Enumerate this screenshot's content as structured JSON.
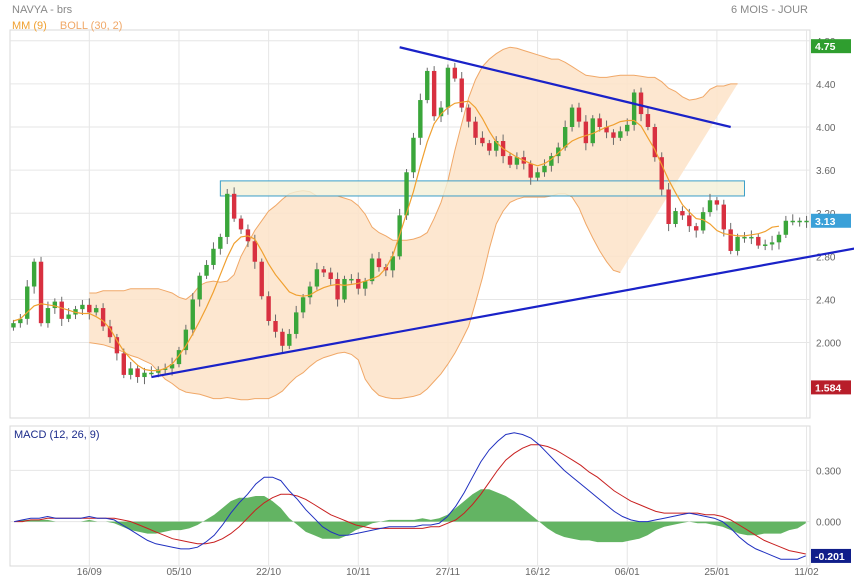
{
  "header": {
    "instrument": "NAVYA - brs",
    "period": "6 MOIS - JOUR"
  },
  "indicators": {
    "mm_label": "MM (9)",
    "boll_label": "BOLL (30, 2)",
    "macd_label": "MACD (12, 26, 9)"
  },
  "colors": {
    "up": "#3aa63a",
    "down": "#d83040",
    "mm": "#f0a030",
    "boll_fill": "#fde3c8",
    "boll_line": "#f0a868",
    "trend": "#1a22c8",
    "zone_fill": "#f2f0d8",
    "zone_stroke": "#3a9ec8",
    "macd_line": "#2030c0",
    "signal_line": "#c82020",
    "hist": "#63b463",
    "grid": "#e6e6e6",
    "badge_last": "#2f9e2f",
    "badge_low": "#b81e2a",
    "badge_price": "#3aa0d8",
    "badge_macd": "#101e8a"
  },
  "chart_data": [
    {
      "type": "candlestick",
      "y_ticks": [
        "4.80",
        "4.40",
        "4.00",
        "3.60",
        "3.20",
        "2.80",
        "2.40",
        "2.000"
      ],
      "ylim": [
        1.3,
        4.9
      ],
      "x_tick_labels": [
        "16/09",
        "05/10",
        "22/10",
        "10/11",
        "27/11",
        "16/12",
        "06/01",
        "25/01",
        "11/02"
      ],
      "x_tick_index": [
        11,
        24,
        37,
        50,
        63,
        76,
        89,
        102,
        115
      ],
      "n_bars": 116,
      "markers": {
        "high": "4.75",
        "price": "3.13",
        "low": "1.584"
      },
      "close": [
        2.18,
        2.22,
        2.52,
        2.75,
        2.18,
        2.32,
        2.38,
        2.22,
        2.26,
        2.31,
        2.35,
        2.28,
        2.32,
        2.15,
        2.05,
        1.9,
        1.7,
        1.76,
        1.68,
        1.72,
        1.72,
        1.75,
        1.76,
        1.8,
        1.93,
        2.12,
        2.4,
        2.62,
        2.72,
        2.87,
        2.98,
        3.38,
        3.15,
        3.05,
        2.94,
        2.75,
        2.43,
        2.2,
        2.1,
        1.97,
        2.08,
        2.28,
        2.42,
        2.52,
        2.68,
        2.65,
        2.59,
        2.4,
        2.59,
        2.59,
        2.5,
        2.57,
        2.78,
        2.7,
        2.67,
        2.8,
        3.18,
        3.58,
        3.9,
        4.25,
        4.52,
        4.1,
        4.18,
        4.55,
        4.45,
        4.18,
        4.05,
        3.9,
        3.85,
        3.78,
        3.87,
        3.73,
        3.65,
        3.72,
        3.66,
        3.53,
        3.58,
        3.64,
        3.73,
        3.81,
        4.0,
        4.18,
        4.05,
        3.85,
        4.08,
        4.0,
        3.95,
        3.9,
        3.96,
        4.02,
        4.32,
        4.12,
        4.0,
        3.72,
        3.42,
        3.1,
        3.22,
        3.18,
        3.08,
        3.04,
        3.21,
        3.32,
        3.28,
        3.05,
        2.85,
        2.98,
        2.98,
        2.98,
        2.9,
        2.91,
        2.93,
        3.0,
        3.13,
        3.13,
        3.13,
        3.13
      ],
      "mm_9": [
        2.2,
        2.22,
        2.28,
        2.34,
        2.36,
        2.35,
        2.34,
        2.32,
        2.3,
        2.28,
        2.27,
        2.27,
        2.24,
        2.2,
        2.13,
        2.02,
        1.92,
        1.85,
        1.79,
        1.75,
        1.74,
        1.74,
        1.76,
        1.8,
        1.88,
        1.97,
        2.08,
        2.2,
        2.33,
        2.47,
        2.63,
        2.79,
        2.92,
        2.98,
        2.99,
        2.96,
        2.85,
        2.73,
        2.63,
        2.55,
        2.47,
        2.44,
        2.43,
        2.44,
        2.48,
        2.51,
        2.53,
        2.54,
        2.53,
        2.54,
        2.55,
        2.57,
        2.59,
        2.62,
        2.69,
        2.81,
        3.0,
        3.2,
        3.4,
        3.64,
        3.86,
        4.03,
        4.12,
        4.18,
        4.22,
        4.23,
        4.24,
        4.18,
        4.08,
        3.96,
        3.86,
        3.8,
        3.76,
        3.72,
        3.69,
        3.66,
        3.64,
        3.66,
        3.7,
        3.76,
        3.82,
        3.87,
        3.9,
        3.92,
        3.94,
        3.97,
        4.0,
        4.02,
        4.05,
        4.06,
        4.06,
        4.01,
        3.9,
        3.79,
        3.65,
        3.51,
        3.39,
        3.28,
        3.21,
        3.15,
        3.14,
        3.1,
        3.04,
        3.01,
        3.0,
        2.99,
        2.99,
        3.0,
        3.01,
        3.03,
        3.07,
        3.08
      ],
      "boll_upper": [
        2.46,
        2.46,
        2.48,
        2.48,
        2.48,
        2.48,
        2.5,
        2.5,
        2.5,
        2.5,
        2.5,
        2.48,
        2.46,
        2.42,
        2.4,
        2.45,
        2.53,
        2.56,
        2.57,
        2.56,
        2.57,
        2.63,
        2.8,
        2.92,
        3.04,
        3.13,
        3.22,
        3.27,
        3.33,
        3.38,
        3.4,
        3.41,
        3.4,
        3.36,
        3.36,
        3.36,
        3.36,
        3.34,
        3.32,
        3.27,
        3.19,
        3.07,
        3.02,
        2.99,
        2.95,
        2.95,
        2.95,
        2.96,
        2.98,
        3.02,
        3.15,
        3.3,
        3.5,
        3.78,
        4.03,
        4.27,
        4.44,
        4.56,
        4.63,
        4.68,
        4.72,
        4.74,
        4.73,
        4.71,
        4.69,
        4.67,
        4.65,
        4.63,
        4.63,
        4.6,
        4.56,
        4.52,
        4.48,
        4.47,
        4.46,
        4.46,
        4.47,
        4.48,
        4.48,
        4.48,
        4.47,
        4.46,
        4.46,
        4.42,
        4.36,
        4.33,
        4.28,
        4.25,
        4.26,
        4.28,
        4.35,
        4.38,
        4.38,
        4.4,
        4.4
      ],
      "boll_lower": [
        2.0,
        1.99,
        1.98,
        1.96,
        1.94,
        1.91,
        1.88,
        1.86,
        1.83,
        1.8,
        1.73,
        1.66,
        1.62,
        1.57,
        1.54,
        1.53,
        1.52,
        1.5,
        1.48,
        1.48,
        1.49,
        1.48,
        1.47,
        1.47,
        1.48,
        1.48,
        1.48,
        1.51,
        1.55,
        1.62,
        1.68,
        1.72,
        1.78,
        1.83,
        1.86,
        1.88,
        1.9,
        1.91,
        1.89,
        1.84,
        1.66,
        1.57,
        1.51,
        1.49,
        1.48,
        1.48,
        1.49,
        1.5,
        1.52,
        1.57,
        1.64,
        1.71,
        1.8,
        1.9,
        2.02,
        2.15,
        2.37,
        2.6,
        2.87,
        3.1,
        3.22,
        3.3,
        3.33,
        3.35,
        3.35,
        3.35,
        3.35,
        3.36,
        3.38,
        3.38,
        3.35,
        3.25,
        3.1,
        2.97,
        2.85,
        2.75,
        2.67,
        2.65
      ],
      "boll_upper_index": [
        11,
        12,
        13,
        14,
        15,
        16,
        17,
        18,
        19,
        20,
        21,
        22,
        23,
        24,
        25,
        26,
        27,
        28,
        29,
        30,
        31,
        32,
        33,
        34,
        35,
        36,
        37,
        38,
        39,
        40,
        41,
        42,
        43,
        44,
        45,
        46,
        47,
        48,
        49,
        50,
        51,
        52,
        53,
        54,
        55,
        56,
        57,
        58,
        59,
        60,
        61,
        62,
        63,
        64,
        65,
        66,
        67,
        68,
        69,
        70,
        71,
        72,
        73,
        74,
        75,
        76,
        77,
        78,
        79,
        80,
        81,
        82,
        83,
        84,
        85,
        86,
        87,
        88,
        89,
        90,
        91,
        92,
        93,
        94,
        95,
        96,
        97,
        98,
        99,
        100,
        101,
        102,
        103,
        104,
        105
      ],
      "trendlines": [
        {
          "from": [
            20,
            1.68
          ],
          "to": [
            126,
            2.92
          ]
        },
        {
          "from": [
            56,
            4.74
          ],
          "to": [
            104,
            4.0
          ]
        }
      ],
      "zone": {
        "from_index": 30,
        "to_index": 106,
        "y_low": 3.36,
        "y_high": 3.5
      }
    },
    {
      "type": "macd",
      "name": "MACD (12, 26, 9)",
      "y_ticks": [
        "0.300",
        "0.000"
      ],
      "ylim": [
        -0.26,
        0.56
      ],
      "last_value": "-0.201",
      "macd": [
        0.0,
        0.01,
        0.02,
        0.02,
        0.03,
        0.02,
        0.02,
        0.02,
        0.02,
        0.03,
        0.02,
        0.02,
        0.01,
        -0.02,
        -0.05,
        -0.08,
        -0.11,
        -0.13,
        -0.14,
        -0.15,
        -0.16,
        -0.16,
        -0.15,
        -0.12,
        -0.08,
        -0.02,
        0.05,
        0.11,
        0.16,
        0.22,
        0.26,
        0.26,
        0.24,
        0.18,
        0.13,
        0.07,
        0.02,
        -0.03,
        -0.06,
        -0.08,
        -0.08,
        -0.07,
        -0.06,
        -0.05,
        -0.04,
        -0.03,
        -0.03,
        -0.03,
        -0.03,
        -0.02,
        -0.02,
        -0.01,
        0.03,
        0.09,
        0.17,
        0.26,
        0.35,
        0.42,
        0.47,
        0.51,
        0.52,
        0.51,
        0.49,
        0.45,
        0.4,
        0.35,
        0.3,
        0.26,
        0.22,
        0.18,
        0.14,
        0.1,
        0.06,
        0.03,
        0.01,
        0.0,
        0.0,
        0.01,
        0.02,
        0.03,
        0.04,
        0.05,
        0.04,
        0.03,
        0.02,
        0.0,
        -0.04,
        -0.09,
        -0.13,
        -0.16,
        -0.18,
        -0.2,
        -0.22,
        -0.22,
        -0.22,
        -0.2
      ],
      "signal": [
        0.0,
        0.0,
        0.01,
        0.01,
        0.02,
        0.02,
        0.02,
        0.02,
        0.02,
        0.02,
        0.02,
        0.02,
        0.02,
        0.01,
        0.0,
        -0.02,
        -0.04,
        -0.06,
        -0.08,
        -0.1,
        -0.11,
        -0.12,
        -0.13,
        -0.13,
        -0.12,
        -0.1,
        -0.07,
        -0.03,
        0.02,
        0.07,
        0.11,
        0.14,
        0.16,
        0.16,
        0.15,
        0.13,
        0.1,
        0.07,
        0.04,
        0.02,
        0.0,
        -0.02,
        -0.03,
        -0.04,
        -0.04,
        -0.04,
        -0.04,
        -0.04,
        -0.04,
        -0.04,
        -0.03,
        -0.03,
        -0.01,
        0.01,
        0.05,
        0.1,
        0.16,
        0.23,
        0.3,
        0.36,
        0.4,
        0.43,
        0.45,
        0.45,
        0.44,
        0.42,
        0.39,
        0.36,
        0.33,
        0.29,
        0.26,
        0.22,
        0.18,
        0.15,
        0.12,
        0.1,
        0.08,
        0.06,
        0.05,
        0.05,
        0.05,
        0.05,
        0.05,
        0.04,
        0.04,
        0.03,
        0.01,
        -0.02,
        -0.05,
        -0.08,
        -0.11,
        -0.13,
        -0.15,
        -0.17,
        -0.18,
        -0.19
      ]
    }
  ]
}
